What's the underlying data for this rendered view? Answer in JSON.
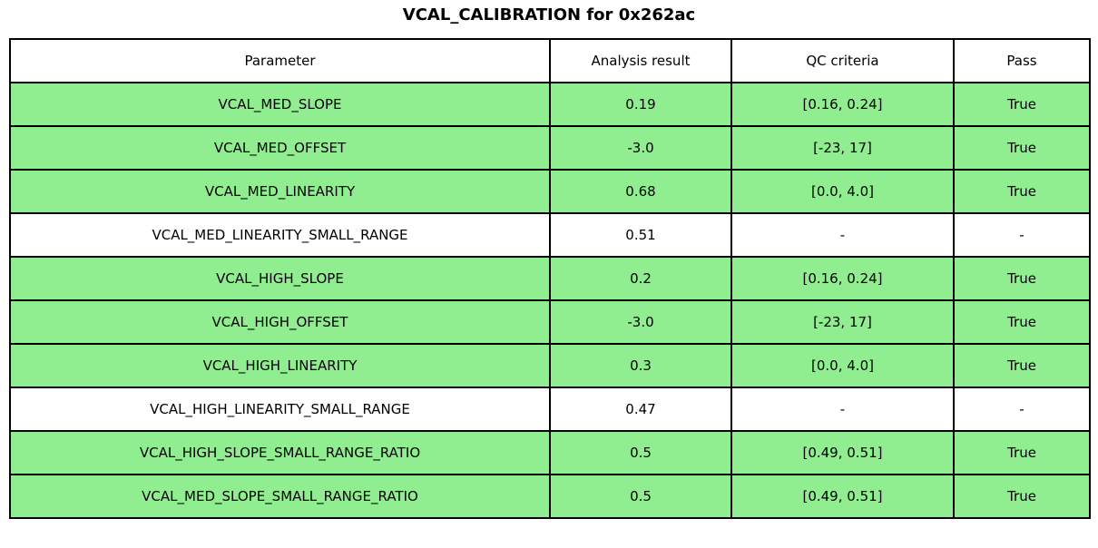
{
  "title": "VCAL_CALIBRATION for 0x262ac",
  "colors": {
    "pass_row_green": "#90ee90",
    "no_criteria_row_white": "#ffffff",
    "border": "#000000",
    "text": "#000000"
  },
  "chart_data": {
    "type": "table",
    "title": "VCAL_CALIBRATION for 0x262ac",
    "columns": [
      "Parameter",
      "Analysis result",
      "QC criteria",
      "Pass"
    ],
    "rows": [
      {
        "cells": [
          "VCAL_MED_SLOPE",
          "0.19",
          "[0.16, 0.24]",
          "True"
        ],
        "highlight": true
      },
      {
        "cells": [
          "VCAL_MED_OFFSET",
          "-3.0",
          "[-23, 17]",
          "True"
        ],
        "highlight": true
      },
      {
        "cells": [
          "VCAL_MED_LINEARITY",
          "0.68",
          "[0.0, 4.0]",
          "True"
        ],
        "highlight": true
      },
      {
        "cells": [
          "VCAL_MED_LINEARITY_SMALL_RANGE",
          "0.51",
          "-",
          "-"
        ],
        "highlight": false
      },
      {
        "cells": [
          "VCAL_HIGH_SLOPE",
          "0.2",
          "[0.16, 0.24]",
          "True"
        ],
        "highlight": true
      },
      {
        "cells": [
          "VCAL_HIGH_OFFSET",
          "-3.0",
          "[-23, 17]",
          "True"
        ],
        "highlight": true
      },
      {
        "cells": [
          "VCAL_HIGH_LINEARITY",
          "0.3",
          "[0.0, 4.0]",
          "True"
        ],
        "highlight": true
      },
      {
        "cells": [
          "VCAL_HIGH_LINEARITY_SMALL_RANGE",
          "0.47",
          "-",
          "-"
        ],
        "highlight": false
      },
      {
        "cells": [
          "VCAL_HIGH_SLOPE_SMALL_RANGE_RATIO",
          "0.5",
          "[0.49, 0.51]",
          "True"
        ],
        "highlight": true
      },
      {
        "cells": [
          "VCAL_MED_SLOPE_SMALL_RANGE_RATIO",
          "0.5",
          "[0.49, 0.51]",
          "True"
        ],
        "highlight": true
      }
    ]
  }
}
